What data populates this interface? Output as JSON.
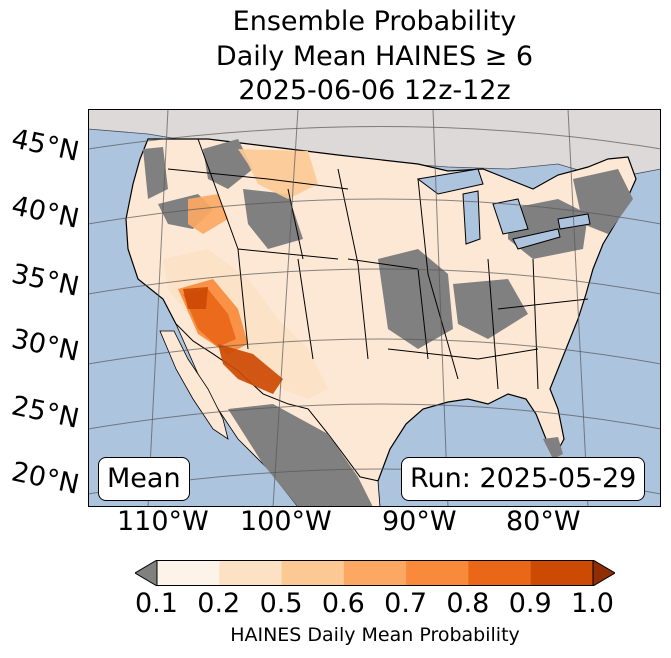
{
  "title": {
    "line1": "Ensemble Probability",
    "line2": "Daily Mean HAINES ≥ 6",
    "line3": "2025-06-06 12z-12z"
  },
  "map": {
    "lat_labels": [
      "45°N",
      "40°N",
      "35°N",
      "30°N",
      "25°N",
      "20°N"
    ],
    "lon_labels": [
      "110°W",
      "100°W",
      "90°W",
      "80°W"
    ],
    "stat_label": "Mean",
    "run_label": "Run: 2025-05-29",
    "ocean_color": "#adc4de",
    "land_color": "#fce8d5",
    "missing_color": "#808080"
  },
  "colorbar": {
    "ticks": [
      "0.1",
      "0.2",
      "0.5",
      "0.6",
      "0.7",
      "0.8",
      "0.9",
      "1.0"
    ],
    "colors": [
      "#fdf3e8",
      "#fce1c4",
      "#fcc995",
      "#fca863",
      "#f98a3b",
      "#ea6718",
      "#cd4a04"
    ],
    "under_color": "#808080",
    "over_color": "#8f2d04",
    "label": "HAINES Daily Mean Probability"
  }
}
